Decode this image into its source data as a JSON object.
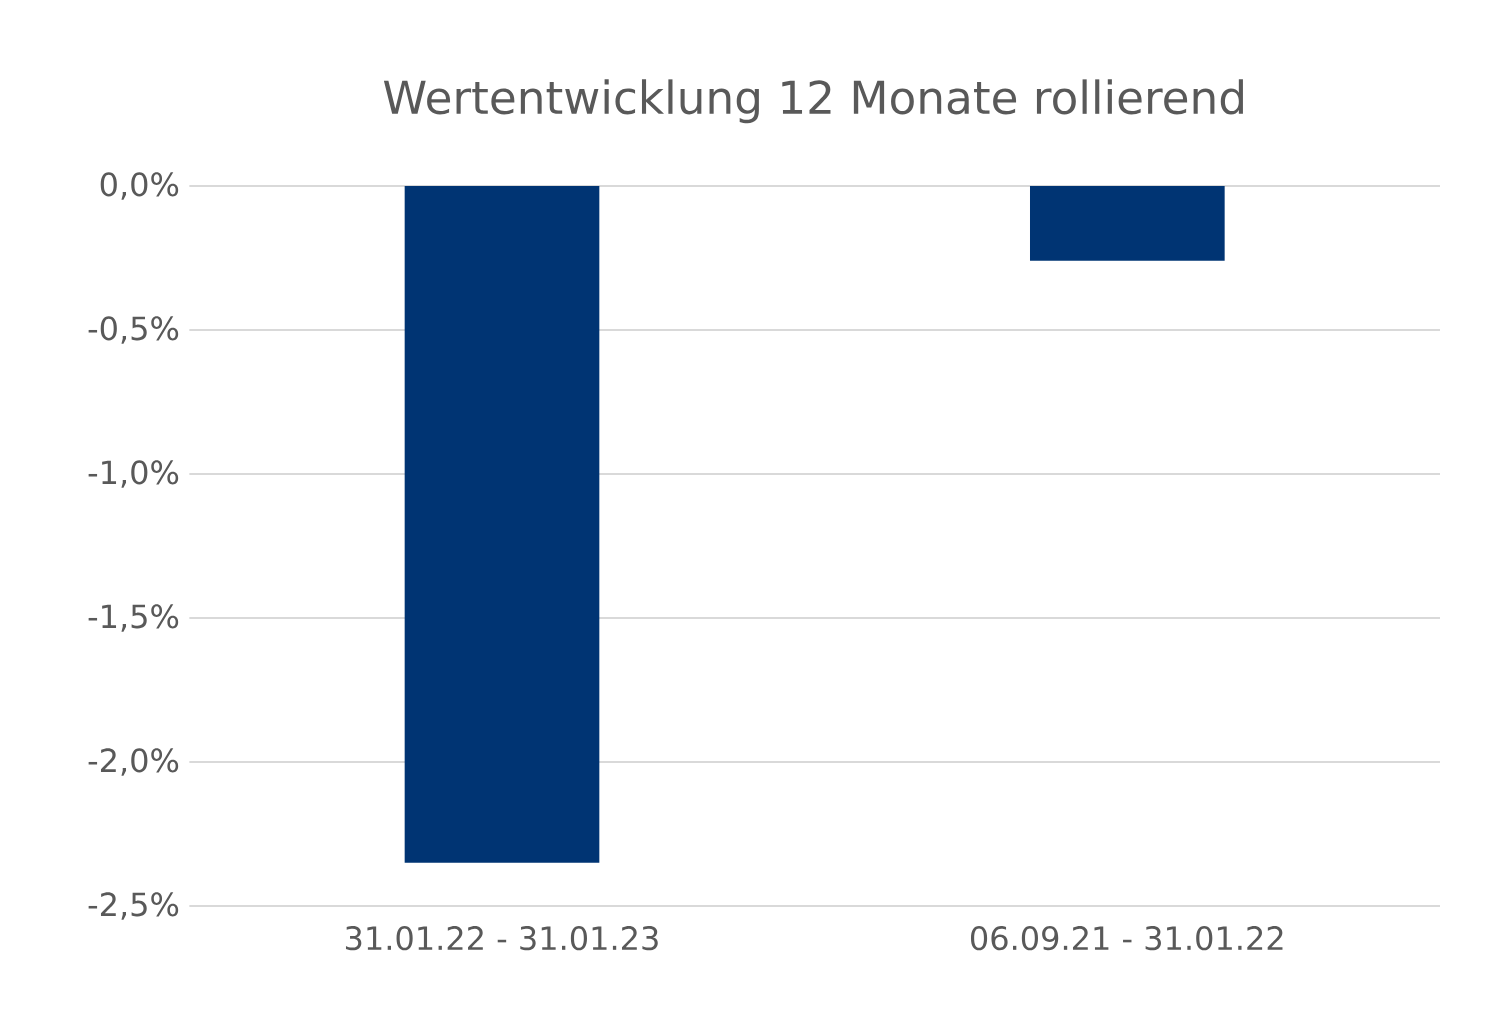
{
  "chart_data": {
    "type": "bar",
    "title": "Wertentwicklung 12 Monate rollierend",
    "categories": [
      "31.01.22 - 31.01.23",
      "06.09.21 - 31.01.22"
    ],
    "values": [
      -2.35,
      -0.26
    ],
    "color": "#003473",
    "ylim": [
      -2.5,
      0
    ],
    "yticks": [
      {
        "value": -2.5,
        "label": "-2,5%"
      },
      {
        "value": -2.0,
        "label": "-2,0%"
      },
      {
        "value": -1.5,
        "label": "-1,5%"
      },
      {
        "value": -1.0,
        "label": "-1,0%"
      },
      {
        "value": -0.5,
        "label": "-0,5%"
      },
      {
        "value": 0,
        "label": "0,0%"
      }
    ],
    "grid": "y"
  }
}
